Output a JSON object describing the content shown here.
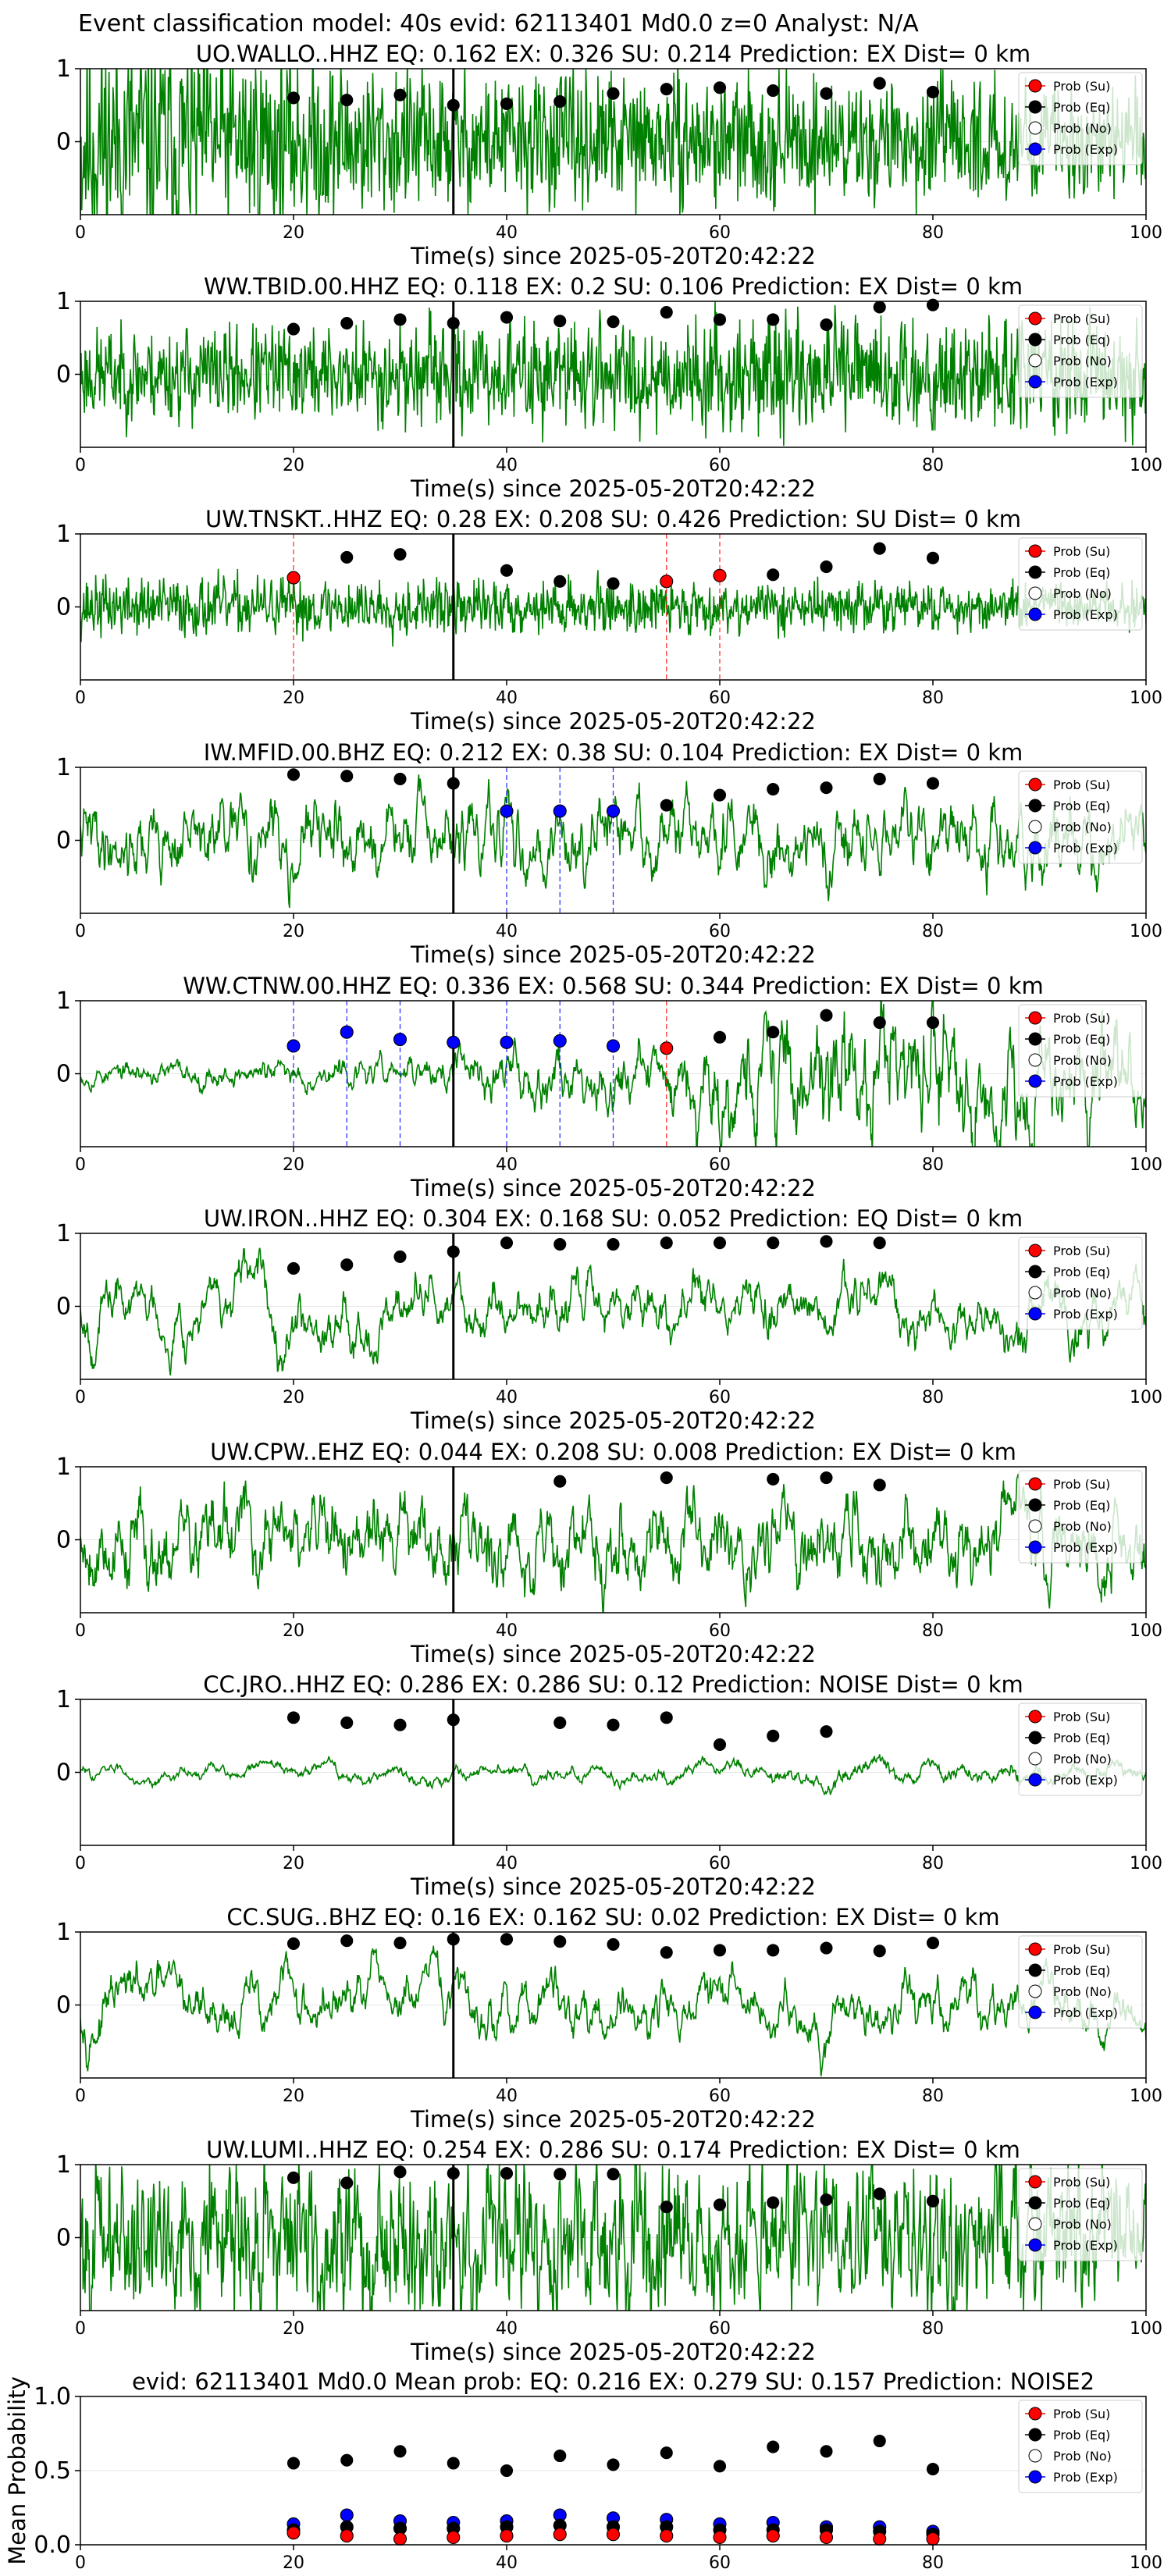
{
  "figure_title": "Event classification model: 40s evid: 62113401 Md0.0 z=0 Analyst: N/A",
  "legend_labels": [
    "Prob (Su)",
    "Prob (Eq)",
    "Prob (No)",
    "Prob (Exp)"
  ],
  "colors": {
    "trace": "#008000",
    "su": "#ff0000",
    "eq": "#000000",
    "no": "#ffffff",
    "exp": "#0000ff"
  },
  "chart_data": [
    {
      "type": "line",
      "title": "UO.WALLO..HHZ   EQ: 0.162  EX: 0.326  SU: 0.214   Prediction: EX    Dist= 0 km",
      "xlabel": "Time(s) since 2025-05-20T20:42:22",
      "ylabel": "",
      "xlim": [
        0,
        100
      ],
      "xticks": [
        0,
        20,
        40,
        60,
        80,
        100
      ],
      "ylim": [
        -1,
        1
      ],
      "yticks": [
        0,
        1
      ],
      "pick_time": 35,
      "trace_seed": 11,
      "trace_smooth": 0.15,
      "trace_amp": [
        [
          0,
          0.8
        ],
        [
          35,
          0.45
        ],
        [
          100,
          0.35
        ]
      ],
      "noise": {
        "t": [
          20,
          25,
          30,
          35,
          40,
          45,
          50,
          55,
          60,
          65,
          70,
          75,
          80
        ],
        "p": [
          0.6,
          0.57,
          0.64,
          0.5,
          0.52,
          0.55,
          0.66,
          0.72,
          0.74,
          0.7,
          0.66,
          0.8,
          0.68
        ]
      },
      "su": {
        "t": [],
        "p": []
      },
      "eq": {
        "t": [],
        "p": []
      },
      "exp": {
        "t": [],
        "p": []
      }
    },
    {
      "type": "line",
      "title": "WW.TBID.00.HHZ   EQ: 0.118  EX: 0.2  SU: 0.106   Prediction: EX    Dist= 0 km",
      "xlabel": "Time(s) since 2025-05-20T20:42:22",
      "ylabel": "",
      "xlim": [
        0,
        100
      ],
      "xticks": [
        0,
        20,
        40,
        60,
        80,
        100
      ],
      "ylim": [
        -1,
        1
      ],
      "yticks": [
        0,
        1
      ],
      "pick_time": 35,
      "trace_seed": 23,
      "trace_smooth": 0.2,
      "trace_amp": [
        [
          0,
          0.3
        ],
        [
          100,
          0.4
        ]
      ],
      "noise": {
        "t": [
          20,
          25,
          30,
          35,
          40,
          45,
          50,
          55,
          60,
          65,
          70,
          75,
          80
        ],
        "p": [
          0.62,
          0.7,
          0.75,
          0.7,
          0.78,
          0.73,
          0.72,
          0.85,
          0.75,
          0.75,
          0.68,
          0.92,
          0.95
        ]
      },
      "su": {
        "t": [],
        "p": []
      },
      "eq": {
        "t": [],
        "p": []
      },
      "exp": {
        "t": [],
        "p": []
      }
    },
    {
      "type": "line",
      "title": "UW.TNSKT..HHZ   EQ: 0.28  EX: 0.208  SU: 0.426   Prediction: SU    Dist= 0 km",
      "xlabel": "Time(s) since 2025-05-20T20:42:22",
      "ylabel": "",
      "xlim": [
        0,
        100
      ],
      "xticks": [
        0,
        20,
        40,
        60,
        80,
        100
      ],
      "ylim": [
        -1,
        1
      ],
      "yticks": [
        0,
        1
      ],
      "pick_time": 35,
      "trace_seed": 37,
      "trace_smooth": 0.15,
      "trace_amp": [
        [
          0,
          0.2
        ],
        [
          100,
          0.15
        ]
      ],
      "noise": {
        "t": [
          25,
          30,
          40,
          45,
          50,
          65,
          70,
          75,
          80
        ],
        "p": [
          0.68,
          0.72,
          0.5,
          0.35,
          0.32,
          0.44,
          0.55,
          0.8,
          0.67
        ]
      },
      "su": {
        "t": [
          20,
          55,
          60
        ],
        "p": [
          0.4,
          0.35,
          0.43
        ]
      },
      "eq": {
        "t": [],
        "p": []
      },
      "exp": {
        "t": [],
        "p": []
      }
    },
    {
      "type": "line",
      "title": "IW.MFID.00.BHZ   EQ: 0.212  EX: 0.38  SU: 0.104   Prediction: EX    Dist= 0 km",
      "xlabel": "Time(s) since 2025-05-20T20:42:22",
      "ylabel": "",
      "xlim": [
        0,
        100
      ],
      "xticks": [
        0,
        20,
        40,
        60,
        80,
        100
      ],
      "ylim": [
        -1,
        1
      ],
      "yticks": [
        0,
        1
      ],
      "pick_time": 35,
      "trace_seed": 41,
      "trace_smooth": 0.85,
      "trace_amp": [
        [
          0,
          0.45
        ],
        [
          100,
          0.45
        ]
      ],
      "noise": {
        "t": [
          20,
          25,
          30,
          35,
          55,
          60,
          65,
          70,
          75,
          80
        ],
        "p": [
          0.9,
          0.88,
          0.84,
          0.78,
          0.48,
          0.62,
          0.7,
          0.72,
          0.84,
          0.78
        ]
      },
      "su": {
        "t": [],
        "p": []
      },
      "eq": {
        "t": [],
        "p": []
      },
      "exp": {
        "t": [
          40,
          45,
          50
        ],
        "p": [
          0.4,
          0.4,
          0.4
        ]
      }
    },
    {
      "type": "line",
      "title": "WW.CTNW.00.HHZ   EQ: 0.336  EX: 0.568  SU: 0.344   Prediction: EX    Dist= 0 km",
      "xlabel": "Time(s) since 2025-05-20T20:42:22",
      "ylabel": "",
      "xlim": [
        0,
        100
      ],
      "xticks": [
        0,
        20,
        40,
        60,
        80,
        100
      ],
      "ylim": [
        -1,
        1
      ],
      "yticks": [
        0,
        1
      ],
      "pick_time": 35,
      "trace_seed": 53,
      "trace_smooth": 0.85,
      "trace_amp": [
        [
          0,
          0.12
        ],
        [
          33,
          0.18
        ],
        [
          36,
          0.3
        ],
        [
          55,
          0.35
        ],
        [
          60,
          0.7
        ],
        [
          75,
          0.85
        ],
        [
          100,
          0.6
        ]
      ],
      "noise": {
        "t": [
          60,
          65,
          70,
          75,
          80
        ],
        "p": [
          0.5,
          0.57,
          0.8,
          0.7,
          0.7
        ]
      },
      "su": {
        "t": [
          55
        ],
        "p": [
          0.35
        ]
      },
      "eq": {
        "t": [],
        "p": []
      },
      "exp": {
        "t": [
          20,
          25,
          30,
          35,
          40,
          45,
          50
        ],
        "p": [
          0.38,
          0.57,
          0.47,
          0.43,
          0.43,
          0.45,
          0.38
        ]
      }
    },
    {
      "type": "line",
      "title": "UW.IRON..HHZ   EQ: 0.304  EX: 0.168  SU: 0.052   Prediction: EQ    Dist= 0 km",
      "xlabel": "Time(s) since 2025-05-20T20:42:22",
      "ylabel": "",
      "xlim": [
        0,
        100
      ],
      "xticks": [
        0,
        20,
        40,
        60,
        80,
        100
      ],
      "ylim": [
        -1,
        1
      ],
      "yticks": [
        0,
        1
      ],
      "pick_time": 35,
      "trace_seed": 67,
      "trace_smooth": 0.93,
      "trace_amp": [
        [
          0,
          0.6
        ],
        [
          100,
          0.65
        ]
      ],
      "noise": {
        "t": [
          20,
          25,
          30,
          35,
          40,
          45,
          50,
          55,
          60,
          65,
          70,
          75
        ],
        "p": [
          0.52,
          0.57,
          0.68,
          0.75,
          0.87,
          0.85,
          0.85,
          0.87,
          0.87,
          0.87,
          0.89,
          0.87
        ]
      },
      "su": {
        "t": [],
        "p": []
      },
      "eq": {
        "t": [],
        "p": []
      },
      "exp": {
        "t": [],
        "p": []
      }
    },
    {
      "type": "line",
      "title": "UW.CPW..EHZ   EQ: 0.044  EX: 0.208  SU: 0.008   Prediction: EX    Dist= 0 km",
      "xlabel": "Time(s) since 2025-05-20T20:42:22",
      "ylabel": "",
      "xlim": [
        0,
        100
      ],
      "xticks": [
        0,
        20,
        40,
        60,
        80,
        100
      ],
      "ylim": [
        -1,
        1
      ],
      "yticks": [
        0,
        1
      ],
      "pick_time": 35,
      "trace_seed": 79,
      "trace_smooth": 0.85,
      "trace_amp": [
        [
          0,
          0.55
        ],
        [
          100,
          0.5
        ]
      ],
      "noise": {
        "t": [
          45,
          55,
          65,
          70,
          75
        ],
        "p": [
          0.8,
          0.85,
          0.83,
          0.85,
          0.75
        ]
      },
      "su": {
        "t": [],
        "p": []
      },
      "eq": {
        "t": [],
        "p": []
      },
      "exp": {
        "t": [],
        "p": []
      }
    },
    {
      "type": "line",
      "title": "CC.JRO..HHZ   EQ: 0.286  EX: 0.286  SU: 0.12   Prediction: NOISE    Dist= 0 km",
      "xlabel": "Time(s) since 2025-05-20T20:42:22",
      "ylabel": "",
      "xlim": [
        0,
        100
      ],
      "xticks": [
        0,
        20,
        40,
        60,
        80,
        100
      ],
      "ylim": [
        -1,
        1
      ],
      "yticks": [
        0,
        1
      ],
      "pick_time": 35,
      "trace_seed": 83,
      "trace_smooth": 0.95,
      "trace_amp": [
        [
          0,
          0.18
        ],
        [
          60,
          0.25
        ],
        [
          100,
          0.35
        ]
      ],
      "noise": {
        "t": [
          20,
          25,
          30,
          35,
          45,
          50,
          55,
          60,
          65,
          70
        ],
        "p": [
          0.75,
          0.68,
          0.65,
          0.72,
          0.68,
          0.65,
          0.75,
          0.38,
          0.5,
          0.56
        ]
      },
      "su": {
        "t": [],
        "p": []
      },
      "eq": {
        "t": [],
        "p": []
      },
      "exp": {
        "t": [],
        "p": []
      }
    },
    {
      "type": "line",
      "title": "CC.SUG..BHZ   EQ: 0.16  EX: 0.162  SU: 0.02   Prediction: EX    Dist= 0 km",
      "xlabel": "Time(s) since 2025-05-20T20:42:22",
      "ylabel": "",
      "xlim": [
        0,
        100
      ],
      "xticks": [
        0,
        20,
        40,
        60,
        80,
        100
      ],
      "ylim": [
        -1,
        1
      ],
      "yticks": [
        0,
        1
      ],
      "pick_time": 35,
      "trace_seed": 97,
      "trace_smooth": 0.93,
      "trace_amp": [
        [
          0,
          0.6
        ],
        [
          100,
          0.6
        ]
      ],
      "noise": {
        "t": [
          20,
          25,
          30,
          35,
          40,
          45,
          50,
          55,
          60,
          65,
          70,
          75,
          80
        ],
        "p": [
          0.84,
          0.88,
          0.85,
          0.9,
          0.9,
          0.87,
          0.83,
          0.72,
          0.75,
          0.75,
          0.78,
          0.74,
          0.85
        ]
      },
      "su": {
        "t": [],
        "p": []
      },
      "eq": {
        "t": [],
        "p": []
      },
      "exp": {
        "t": [],
        "p": []
      }
    },
    {
      "type": "line",
      "title": "UW.LUMI..HHZ   EQ: 0.254  EX: 0.286  SU: 0.174   Prediction: EX    Dist= 0 km",
      "xlabel": "Time(s) since 2025-05-20T20:42:22",
      "ylabel": "",
      "xlim": [
        0,
        100
      ],
      "xticks": [
        0,
        20,
        40,
        60,
        80,
        100
      ],
      "ylim": [
        -1,
        1
      ],
      "yticks": [
        0,
        1
      ],
      "pick_time": 35,
      "trace_seed": 101,
      "trace_smooth": 0.55,
      "trace_amp": [
        [
          0,
          0.55
        ],
        [
          100,
          0.55
        ]
      ],
      "noise": {
        "t": [
          20,
          25,
          30,
          35,
          40,
          45,
          50,
          55,
          60,
          65,
          70,
          75,
          80
        ],
        "p": [
          0.82,
          0.75,
          0.9,
          0.88,
          0.88,
          0.87,
          0.87,
          0.42,
          0.45,
          0.48,
          0.52,
          0.6,
          0.5
        ]
      },
      "su": {
        "t": [],
        "p": []
      },
      "eq": {
        "t": [],
        "p": []
      },
      "exp": {
        "t": [],
        "p": []
      }
    },
    {
      "type": "scatter",
      "title": "evid: 62113401  Md0.0   Mean prob:   EQ: 0.216  EX: 0.279  SU: 0.157   Prediction: NOISE2",
      "xlabel": "",
      "ylabel": "Mean Probability",
      "xlim": [
        0,
        100
      ],
      "xticks": [
        0,
        20,
        40,
        60,
        80,
        100
      ],
      "ylim": [
        0,
        1
      ],
      "yticks": [
        0.0,
        0.5,
        1.0
      ],
      "noise": {
        "t": [
          20,
          25,
          30,
          35,
          40,
          45,
          50,
          55,
          60,
          65,
          70,
          75,
          80
        ],
        "p": [
          0.55,
          0.57,
          0.63,
          0.55,
          0.5,
          0.6,
          0.54,
          0.62,
          0.53,
          0.66,
          0.63,
          0.7,
          0.51
        ]
      },
      "exp": {
        "t": [
          20,
          25,
          30,
          35,
          40,
          45,
          50,
          55,
          60,
          65,
          70,
          75,
          80
        ],
        "p": [
          0.14,
          0.2,
          0.16,
          0.15,
          0.16,
          0.2,
          0.18,
          0.17,
          0.14,
          0.15,
          0.12,
          0.12,
          0.09
        ]
      },
      "eq": {
        "t": [
          20,
          25,
          30,
          35,
          40,
          45,
          50,
          55,
          60,
          65,
          70,
          75,
          80
        ],
        "p": [
          0.1,
          0.12,
          0.11,
          0.11,
          0.12,
          0.13,
          0.12,
          0.12,
          0.1,
          0.1,
          0.1,
          0.09,
          0.07
        ]
      },
      "su": {
        "t": [
          20,
          25,
          30,
          35,
          40,
          45,
          50,
          55,
          60,
          65,
          70,
          75,
          80
        ],
        "p": [
          0.08,
          0.06,
          0.04,
          0.05,
          0.06,
          0.07,
          0.07,
          0.06,
          0.05,
          0.06,
          0.05,
          0.04,
          0.04
        ]
      }
    }
  ]
}
